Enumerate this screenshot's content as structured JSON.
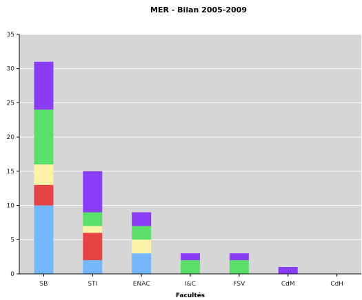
{
  "chart_data": {
    "type": "bar",
    "stacked": true,
    "title": "MER - Bilan 2005-2009",
    "xlabel": "Facultés",
    "ylabel": "",
    "ylim": [
      0,
      35
    ],
    "yticks": [
      0,
      5,
      10,
      15,
      20,
      25,
      30,
      35
    ],
    "grid": true,
    "legend": "none",
    "plot_background": "#d6d6d6",
    "categories": [
      "SB",
      "STI",
      "ENAC",
      "I&C",
      "FSV",
      "CdM",
      "CdH"
    ],
    "series": [
      {
        "color": "#74b8fb",
        "values": [
          10,
          2,
          3,
          0,
          0,
          0,
          0
        ]
      },
      {
        "color": "#e84343",
        "values": [
          3,
          4,
          0,
          0,
          0,
          0,
          0
        ]
      },
      {
        "color": "#fbf3a6",
        "values": [
          3,
          1,
          2,
          0,
          0,
          0,
          0
        ]
      },
      {
        "color": "#5ae06a",
        "values": [
          8,
          2,
          2,
          2,
          2,
          0,
          0
        ]
      },
      {
        "color": "#8a3df7",
        "values": [
          7,
          6,
          2,
          1,
          1,
          1,
          0
        ]
      }
    ]
  }
}
